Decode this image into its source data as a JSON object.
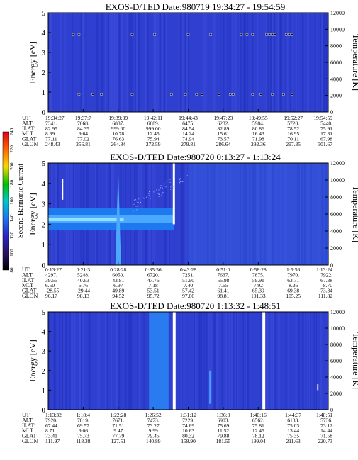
{
  "colorbar": {
    "label": "Second Harmonic Current",
    "ticks": [
      "240",
      "220",
      "200",
      "180",
      "160",
      "140",
      "120",
      "100",
      "80"
    ],
    "stops": [
      "#e0001a",
      "#ff6000",
      "#f8d800",
      "#00c000",
      "#00c8c8",
      "#1e78f0",
      "#2828c8",
      "#2a1460",
      "#000000"
    ]
  },
  "panels": [
    {
      "title": "EXOS-D/TED",
      "date": "Date:980719",
      "time": "19:34:27 - 19:54:59",
      "ylabel": "Energy [eV]",
      "y2label": "Temperature [K]",
      "ylim": [
        0,
        5
      ],
      "y2lim": [
        0,
        12000
      ],
      "yticks": [
        "0",
        "1",
        "2",
        "3",
        "4",
        "5"
      ],
      "y2ticks": [
        "0",
        "2000",
        "4000",
        "6000",
        "8000",
        "10000",
        "12000"
      ],
      "row_labels": [
        "UT",
        "ALT",
        "ILAT",
        "MLT",
        "GLAT",
        "GLON"
      ],
      "columns": [
        [
          "19:34:27",
          "7341.",
          "82.95",
          "8.89",
          "77.11",
          "248.43"
        ],
        [
          "19:37:7",
          "7068.",
          "84.35",
          "9.64",
          "77.02",
          "256.81"
        ],
        [
          "19:39:39",
          "6887.",
          "999.00",
          "10.78",
          "76.63",
          "264.84"
        ],
        [
          "19:42:11",
          "6689.",
          "999.00",
          "12.45",
          "75.94",
          "272.59"
        ],
        [
          "19:44:43",
          "6475.",
          "84.54",
          "14.24",
          "74.94",
          "279.81"
        ],
        [
          "19:47:23",
          "6232.",
          "82.89",
          "15.61",
          "73.57",
          "286.64"
        ],
        [
          "19:49:55",
          "5984.",
          "80.86",
          "16.43",
          "71.98",
          "292.36"
        ],
        [
          "19:52:27",
          "5720.",
          "78.52",
          "16.95",
          "70.11",
          "297.35"
        ],
        [
          "19:54:59",
          "5440.",
          "75.91",
          "17.31",
          "67.98",
          "301.67"
        ]
      ]
    },
    {
      "title": "EXOS-D/TED",
      "date": "Date:980720",
      "time": "0:13:27 - 1:13:24",
      "ylabel": "Energy [eV]",
      "y2label": "Temperature [K]",
      "ylim": [
        0,
        5
      ],
      "y2lim": [
        0,
        12000
      ],
      "yticks": [
        "0",
        "1",
        "2",
        "3",
        "4",
        "5"
      ],
      "y2ticks": [
        "0",
        "2000",
        "4000",
        "6000",
        "8000",
        "10000",
        "12000"
      ],
      "row_labels": [
        "UT",
        "ALT",
        "ILAT",
        "MLT",
        "GLAT",
        "GLON"
      ],
      "columns": [
        [
          "0:13:27",
          "4297.",
          "39.55",
          "6.50",
          "-28.55",
          "96.17"
        ],
        [
          "0:21:3",
          "5248.",
          "40.63",
          "6.76",
          "-29.44",
          "98.13"
        ],
        [
          "0:28:28",
          "6050.",
          "43.81",
          "6.97",
          "49.89",
          "94.52"
        ],
        [
          "0:35:56",
          "6720.",
          "47.76",
          "7.18",
          "53.51",
          "95.72"
        ],
        [
          "0:43:28",
          "7251.",
          "51.90",
          "7.40",
          "57.42",
          "97.06"
        ],
        [
          "0:51:0",
          "7637.",
          "55.98",
          "7.65",
          "61.41",
          "98.81"
        ],
        [
          "0:58:28",
          "7875.",
          "59.91",
          "7.92",
          "65.39",
          "101.33"
        ],
        [
          "1:5:56",
          "7970.",
          "63.71",
          "8.26",
          "69.38",
          "105.25"
        ],
        [
          "1:13:24",
          "7922.",
          "67.38",
          "8.70",
          "73.34",
          "111.82"
        ]
      ]
    },
    {
      "title": "EXOS-D/TED",
      "date": "Date:980720",
      "time": "1:13:32 - 1:48:51",
      "ylabel": "Energy [eV]",
      "y2label": "Temperature [K]",
      "ylim": [
        0,
        5
      ],
      "y2lim": [
        0,
        12000
      ],
      "yticks": [
        "0",
        "1",
        "2",
        "3",
        "4",
        "5"
      ],
      "y2ticks": [
        "0",
        "2000",
        "4000",
        "6000",
        "8000",
        "10000",
        "12000"
      ],
      "row_labels": [
        "UT",
        "ALT",
        "ILAT",
        "MLT",
        "GLAT",
        "GLON"
      ],
      "columns": [
        [
          "1:13:32",
          "7920.",
          "67.44",
          "8.71",
          "73.41",
          "111.97"
        ],
        [
          "1:18:4",
          "7819.",
          "69.57",
          "9.06",
          "75.73",
          "118.38"
        ],
        [
          "1:22:28",
          "7671.",
          "71.51",
          "9.47",
          "77.79",
          "127.51"
        ],
        [
          "1:26:52",
          "7473.",
          "73.27",
          "9.99",
          "79.45",
          "140.89"
        ],
        [
          "1:31:12",
          "7229.",
          "74.69",
          "10.63",
          "80.32",
          "158.90"
        ],
        [
          "1:36:0",
          "6903.",
          "75.69",
          "11.52",
          "79.88",
          "181.55"
        ],
        [
          "1:40:16",
          "6562.",
          "75.81",
          "12.45",
          "78.12",
          "199.04"
        ],
        [
          "1:44:37",
          "6183.",
          "75.03",
          "13.44",
          "75.35",
          "211.63"
        ],
        [
          "1:48:51",
          "5736.",
          "73.12",
          "14.44",
          "71.58",
          "220.73"
        ]
      ]
    }
  ],
  "chart_data": [
    {
      "type": "heatmap",
      "title": "EXOS-D/TED Date:980719 19:34:27 - 19:54:59",
      "xlabel": "UT",
      "ylabel": "Energy [eV]",
      "y2label": "Temperature [K]",
      "ylim": [
        0,
        5
      ],
      "y2lim": [
        0,
        12000
      ],
      "x": [
        "19:34:27",
        "19:37:7",
        "19:39:39",
        "19:42:11",
        "19:44:43",
        "19:47:23",
        "19:49:55",
        "19:52:27",
        "19:54:59"
      ],
      "colorbar": {
        "label": "Second Harmonic Current",
        "range": [
          80,
          240
        ]
      },
      "markers": [
        {
          "series": "temperature",
          "y_energy": 3.9,
          "x_frac": [
            0.09,
            0.11,
            0.3,
            0.38,
            0.5,
            0.58,
            0.69,
            0.71,
            0.73,
            0.78,
            0.79,
            0.8,
            0.81,
            0.85,
            0.86,
            0.87
          ]
        },
        {
          "series": "temperature",
          "y_energy": 0.9,
          "x_frac": [
            0.11,
            0.16,
            0.19,
            0.3,
            0.44,
            0.49,
            0.53,
            0.55,
            0.61,
            0.65,
            0.66,
            0.73,
            0.76,
            0.8,
            0.84,
            0.87
          ]
        }
      ]
    },
    {
      "type": "heatmap",
      "title": "EXOS-D/TED Date:980720 0:13:27 - 1:13:24",
      "xlabel": "UT",
      "ylabel": "Energy [eV]",
      "y2label": "Temperature [K]",
      "ylim": [
        0,
        5
      ],
      "y2lim": [
        0,
        12000
      ],
      "x": [
        "0:13:27",
        "0:21:3",
        "0:28:28",
        "0:35:56",
        "0:43:28",
        "0:51:0",
        "0:58:28",
        "1:5:56",
        "1:13:24"
      ],
      "colorbar": {
        "label": "Second Harmonic Current",
        "range": [
          80,
          240
        ]
      },
      "band": {
        "x_frac": [
          0.0,
          0.45
        ],
        "energy_range": [
          1.7,
          2.8
        ]
      },
      "spike": {
        "x_frac": 0.25,
        "energy_top": 4.7
      }
    },
    {
      "type": "heatmap",
      "title": "EXOS-D/TED Date:980720 1:13:32 - 1:48:51",
      "xlabel": "UT",
      "ylabel": "Energy [eV]",
      "y2label": "Temperature [K]",
      "ylim": [
        0,
        5
      ],
      "y2lim": [
        0,
        12000
      ],
      "x": [
        "1:13:32",
        "1:18:4",
        "1:22:28",
        "1:26:52",
        "1:31:12",
        "1:36:0",
        "1:40:16",
        "1:44:37",
        "1:48:51"
      ],
      "colorbar": {
        "label": "Second Harmonic Current",
        "range": [
          80,
          240
        ]
      },
      "gaps_x_frac": [
        0.445,
        0.765
      ]
    }
  ]
}
